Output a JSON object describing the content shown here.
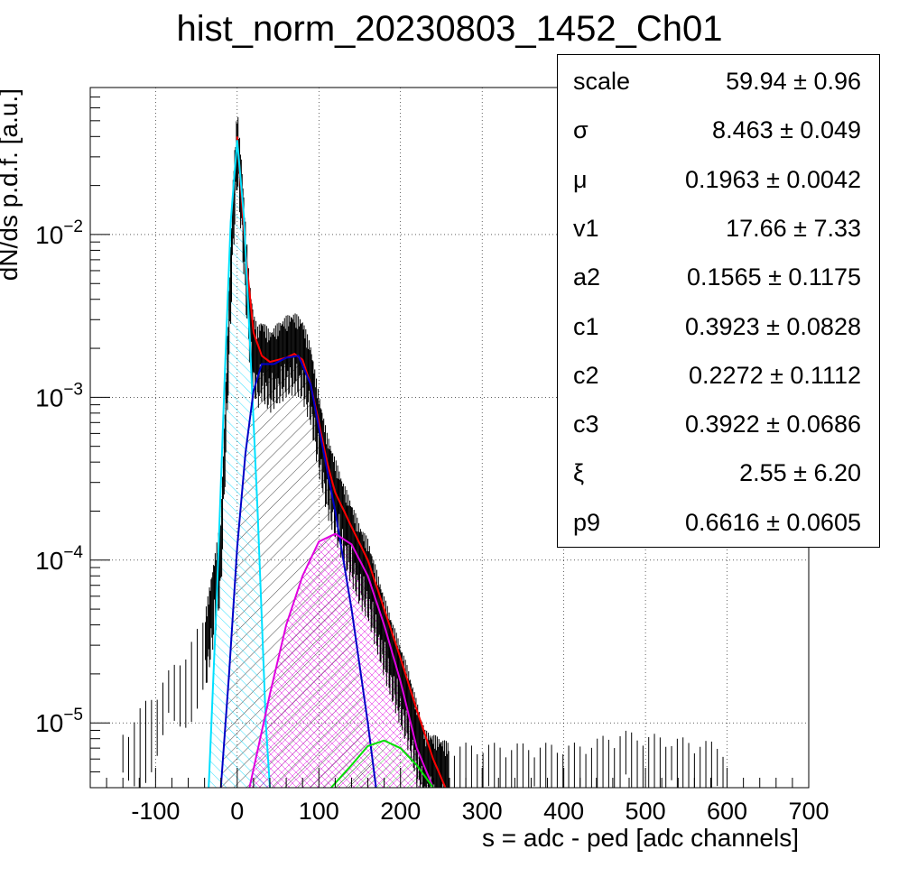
{
  "chart_data": {
    "type": "histogram",
    "title": "hist_norm_20230803_1452_Ch01",
    "xlabel": "s = adc - ped [adc channels]",
    "ylabel": "dN/ds p.d.f. [a.u.]",
    "xlim": [
      -180,
      700
    ],
    "ylim_log": [
      4e-06,
      0.08
    ],
    "y_scale": "log",
    "grid": true,
    "x_ticks": [
      "-100",
      "0",
      "100",
      "200",
      "300",
      "400",
      "500",
      "600",
      "700"
    ],
    "x_tick_values": [
      -100,
      0,
      100,
      200,
      300,
      400,
      500,
      600,
      700
    ],
    "y_ticks": [
      {
        "base": "10",
        "exp": "-5",
        "value": 1e-05
      },
      {
        "base": "10",
        "exp": "-4",
        "value": 0.0001
      },
      {
        "base": "10",
        "exp": "-3",
        "value": 0.001
      },
      {
        "base": "10",
        "exp": "-2",
        "value": 0.01
      }
    ],
    "histogram": {
      "color": "#000000",
      "points": [
        [
          -140,
          6e-06
        ],
        [
          -60,
          2e-05
        ],
        [
          -40,
          3e-05
        ],
        [
          -30,
          6e-05
        ],
        [
          -20,
          0.00012
        ],
        [
          -15,
          0.0006
        ],
        [
          -10,
          0.003
        ],
        [
          -5,
          0.015
        ],
        [
          0,
          0.04
        ],
        [
          5,
          0.02
        ],
        [
          10,
          0.008
        ],
        [
          15,
          0.0035
        ],
        [
          20,
          0.0022
        ],
        [
          25,
          0.0018
        ],
        [
          30,
          0.002
        ],
        [
          40,
          0.0017
        ],
        [
          50,
          0.0019
        ],
        [
          60,
          0.0021
        ],
        [
          70,
          0.0022
        ],
        [
          80,
          0.002
        ],
        [
          90,
          0.0014
        ],
        [
          100,
          0.0007
        ],
        [
          110,
          0.0004
        ],
        [
          120,
          0.00028
        ],
        [
          130,
          0.0002
        ],
        [
          140,
          0.00015
        ],
        [
          150,
          0.00011
        ],
        [
          160,
          9e-05
        ],
        [
          170,
          6e-05
        ],
        [
          180,
          4e-05
        ],
        [
          190,
          2.8e-05
        ],
        [
          200,
          2e-05
        ],
        [
          210,
          1.4e-05
        ],
        [
          220,
          9e-06
        ],
        [
          230,
          6e-06
        ],
        [
          260,
          5e-06
        ],
        [
          300,
          5e-06
        ],
        [
          420,
          5e-06
        ],
        [
          470,
          6e-06
        ],
        [
          600,
          5e-06
        ]
      ]
    },
    "fit_curves": [
      {
        "color": "#ff0000",
        "fill": "none",
        "points": [
          [
            0,
            0.04
          ],
          [
            10,
            0.008
          ],
          [
            20,
            0.0025
          ],
          [
            30,
            0.0018
          ],
          [
            40,
            0.00165
          ],
          [
            50,
            0.0017
          ],
          [
            60,
            0.00175
          ],
          [
            70,
            0.00185
          ],
          [
            80,
            0.0017
          ],
          [
            90,
            0.0012
          ],
          [
            100,
            0.0007
          ],
          [
            110,
            0.0004
          ],
          [
            120,
            0.00026
          ],
          [
            140,
            0.00016
          ],
          [
            160,
            0.0001
          ],
          [
            180,
            5e-05
          ],
          [
            200,
            2.5e-05
          ],
          [
            220,
            1.2e-05
          ],
          [
            240,
            6e-06
          ],
          [
            255,
            4e-06
          ]
        ]
      },
      {
        "color": "#00e0ff",
        "fill": "cyan-hatch",
        "points": [
          [
            -35,
            4e-06
          ],
          [
            -25,
            6e-05
          ],
          [
            -15,
            0.0015
          ],
          [
            -8,
            0.012
          ],
          [
            0,
            0.038
          ],
          [
            8,
            0.013
          ],
          [
            15,
            0.0025
          ],
          [
            25,
            0.0002
          ],
          [
            35,
            1e-05
          ],
          [
            40,
            4e-06
          ]
        ]
      },
      {
        "color": "#0000c8",
        "fill": "black-hatch",
        "points": [
          [
            -20,
            4e-06
          ],
          [
            -10,
            2e-05
          ],
          [
            0,
            0.00012
          ],
          [
            10,
            0.00045
          ],
          [
            20,
            0.0011
          ],
          [
            30,
            0.0016
          ],
          [
            45,
            0.0016
          ],
          [
            60,
            0.00175
          ],
          [
            75,
            0.0018
          ],
          [
            90,
            0.0012
          ],
          [
            100,
            0.00065
          ],
          [
            120,
            0.0002
          ],
          [
            140,
            5e-05
          ],
          [
            160,
            1e-05
          ],
          [
            170,
            4e-06
          ]
        ]
      },
      {
        "color": "#e000e0",
        "fill": "magenta-hatch",
        "points": [
          [
            15,
            4e-06
          ],
          [
            40,
            1.5e-05
          ],
          [
            60,
            4e-05
          ],
          [
            80,
            8e-05
          ],
          [
            100,
            0.00013
          ],
          [
            120,
            0.000145
          ],
          [
            140,
            0.000125
          ],
          [
            160,
            8e-05
          ],
          [
            180,
            4e-05
          ],
          [
            200,
            1.8e-05
          ],
          [
            220,
            7e-06
          ],
          [
            240,
            4e-06
          ]
        ]
      },
      {
        "color": "#00e000",
        "fill": "green-hatch",
        "points": [
          [
            115,
            4e-06
          ],
          [
            140,
            5.5e-06
          ],
          [
            160,
            7.2e-06
          ],
          [
            180,
            7.8e-06
          ],
          [
            200,
            7e-06
          ],
          [
            220,
            5.5e-06
          ],
          [
            240,
            4e-06
          ]
        ]
      }
    ]
  },
  "stats_box": {
    "rows": [
      {
        "name": "scale",
        "value": "59.94 ± 0.96"
      },
      {
        "name": "σ",
        "value": "8.463 ± 0.049"
      },
      {
        "name": "μ",
        "value": "0.1963 ± 0.0042"
      },
      {
        "name": "v1",
        "value": "17.66 ± 7.33"
      },
      {
        "name": "a2",
        "value": "0.1565 ± 0.1175"
      },
      {
        "name": "c1",
        "value": "0.3923 ± 0.0828"
      },
      {
        "name": "c2",
        "value": "0.2272 ± 0.1112"
      },
      {
        "name": "c3",
        "value": "0.3922 ± 0.0686"
      },
      {
        "name": "ξ",
        "value": "2.55 ± 6.20"
      },
      {
        "name": "p9",
        "value": "0.6616 ± 0.0605"
      }
    ]
  }
}
